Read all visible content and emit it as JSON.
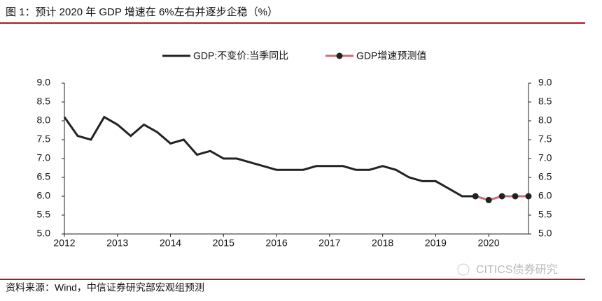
{
  "title": "图 1：预计 2020 年 GDP 增速在 6%左右并逐步企稳（%）",
  "source": "资料来源：Wind，中信证券研究部宏观组预测",
  "watermark": "CITICS债券研究",
  "chart_data": {
    "type": "line",
    "categories": [
      "2012",
      null,
      null,
      null,
      "2013",
      null,
      null,
      null,
      "2014",
      null,
      null,
      null,
      "2015",
      null,
      null,
      null,
      "2016",
      null,
      null,
      null,
      "2017",
      null,
      null,
      null,
      "2018",
      null,
      null,
      null,
      "2019",
      null,
      null,
      null,
      "2020",
      null,
      null,
      null
    ],
    "series": [
      {
        "name": "GDP:不变价:当季同比",
        "color": "#222222",
        "values": [
          8.1,
          7.6,
          7.5,
          8.1,
          7.9,
          7.6,
          7.9,
          7.7,
          7.4,
          7.5,
          7.1,
          7.2,
          7.0,
          7.0,
          6.9,
          6.8,
          6.7,
          6.7,
          6.7,
          6.8,
          6.8,
          6.8,
          6.7,
          6.7,
          6.8,
          6.7,
          6.5,
          6.4,
          6.4,
          6.2,
          6.0,
          6.0,
          null,
          null,
          null,
          null
        ]
      },
      {
        "name": "GDP增速预测值",
        "color": "#c9707a",
        "marker_color": "#222222",
        "values": [
          null,
          null,
          null,
          null,
          null,
          null,
          null,
          null,
          null,
          null,
          null,
          null,
          null,
          null,
          null,
          null,
          null,
          null,
          null,
          null,
          null,
          null,
          null,
          null,
          null,
          null,
          null,
          null,
          null,
          null,
          null,
          6.0,
          5.9,
          6.0,
          6.0,
          6.0
        ]
      }
    ],
    "ylim": [
      5,
      9
    ],
    "yticks": [
      {
        "value": 5,
        "label": "5.0"
      },
      {
        "value": 5.5,
        "label": "5.5"
      },
      {
        "value": 6,
        "label": "6.0"
      },
      {
        "value": 6.5,
        "label": "6.5"
      },
      {
        "value": 7,
        "label": "7.0"
      },
      {
        "value": 7.5,
        "label": "7.5"
      },
      {
        "value": 8,
        "label": "8.0"
      },
      {
        "value": 8.5,
        "label": "8.5"
      },
      {
        "value": 9,
        "label": "9.0"
      }
    ],
    "y2lim": [
      5,
      9
    ],
    "y2ticks": [
      {
        "value": 5,
        "label": "5.0"
      },
      {
        "value": 5.5,
        "label": "5.5"
      },
      {
        "value": 6,
        "label": "6.0"
      },
      {
        "value": 6.5,
        "label": "6.5"
      },
      {
        "value": 7,
        "label": "7.0"
      },
      {
        "value": 7.5,
        "label": "7.5"
      },
      {
        "value": 8,
        "label": "8.0"
      },
      {
        "value": 8.5,
        "label": "8.5"
      },
      {
        "value": 9,
        "label": "9.0"
      }
    ],
    "legend": "top"
  }
}
